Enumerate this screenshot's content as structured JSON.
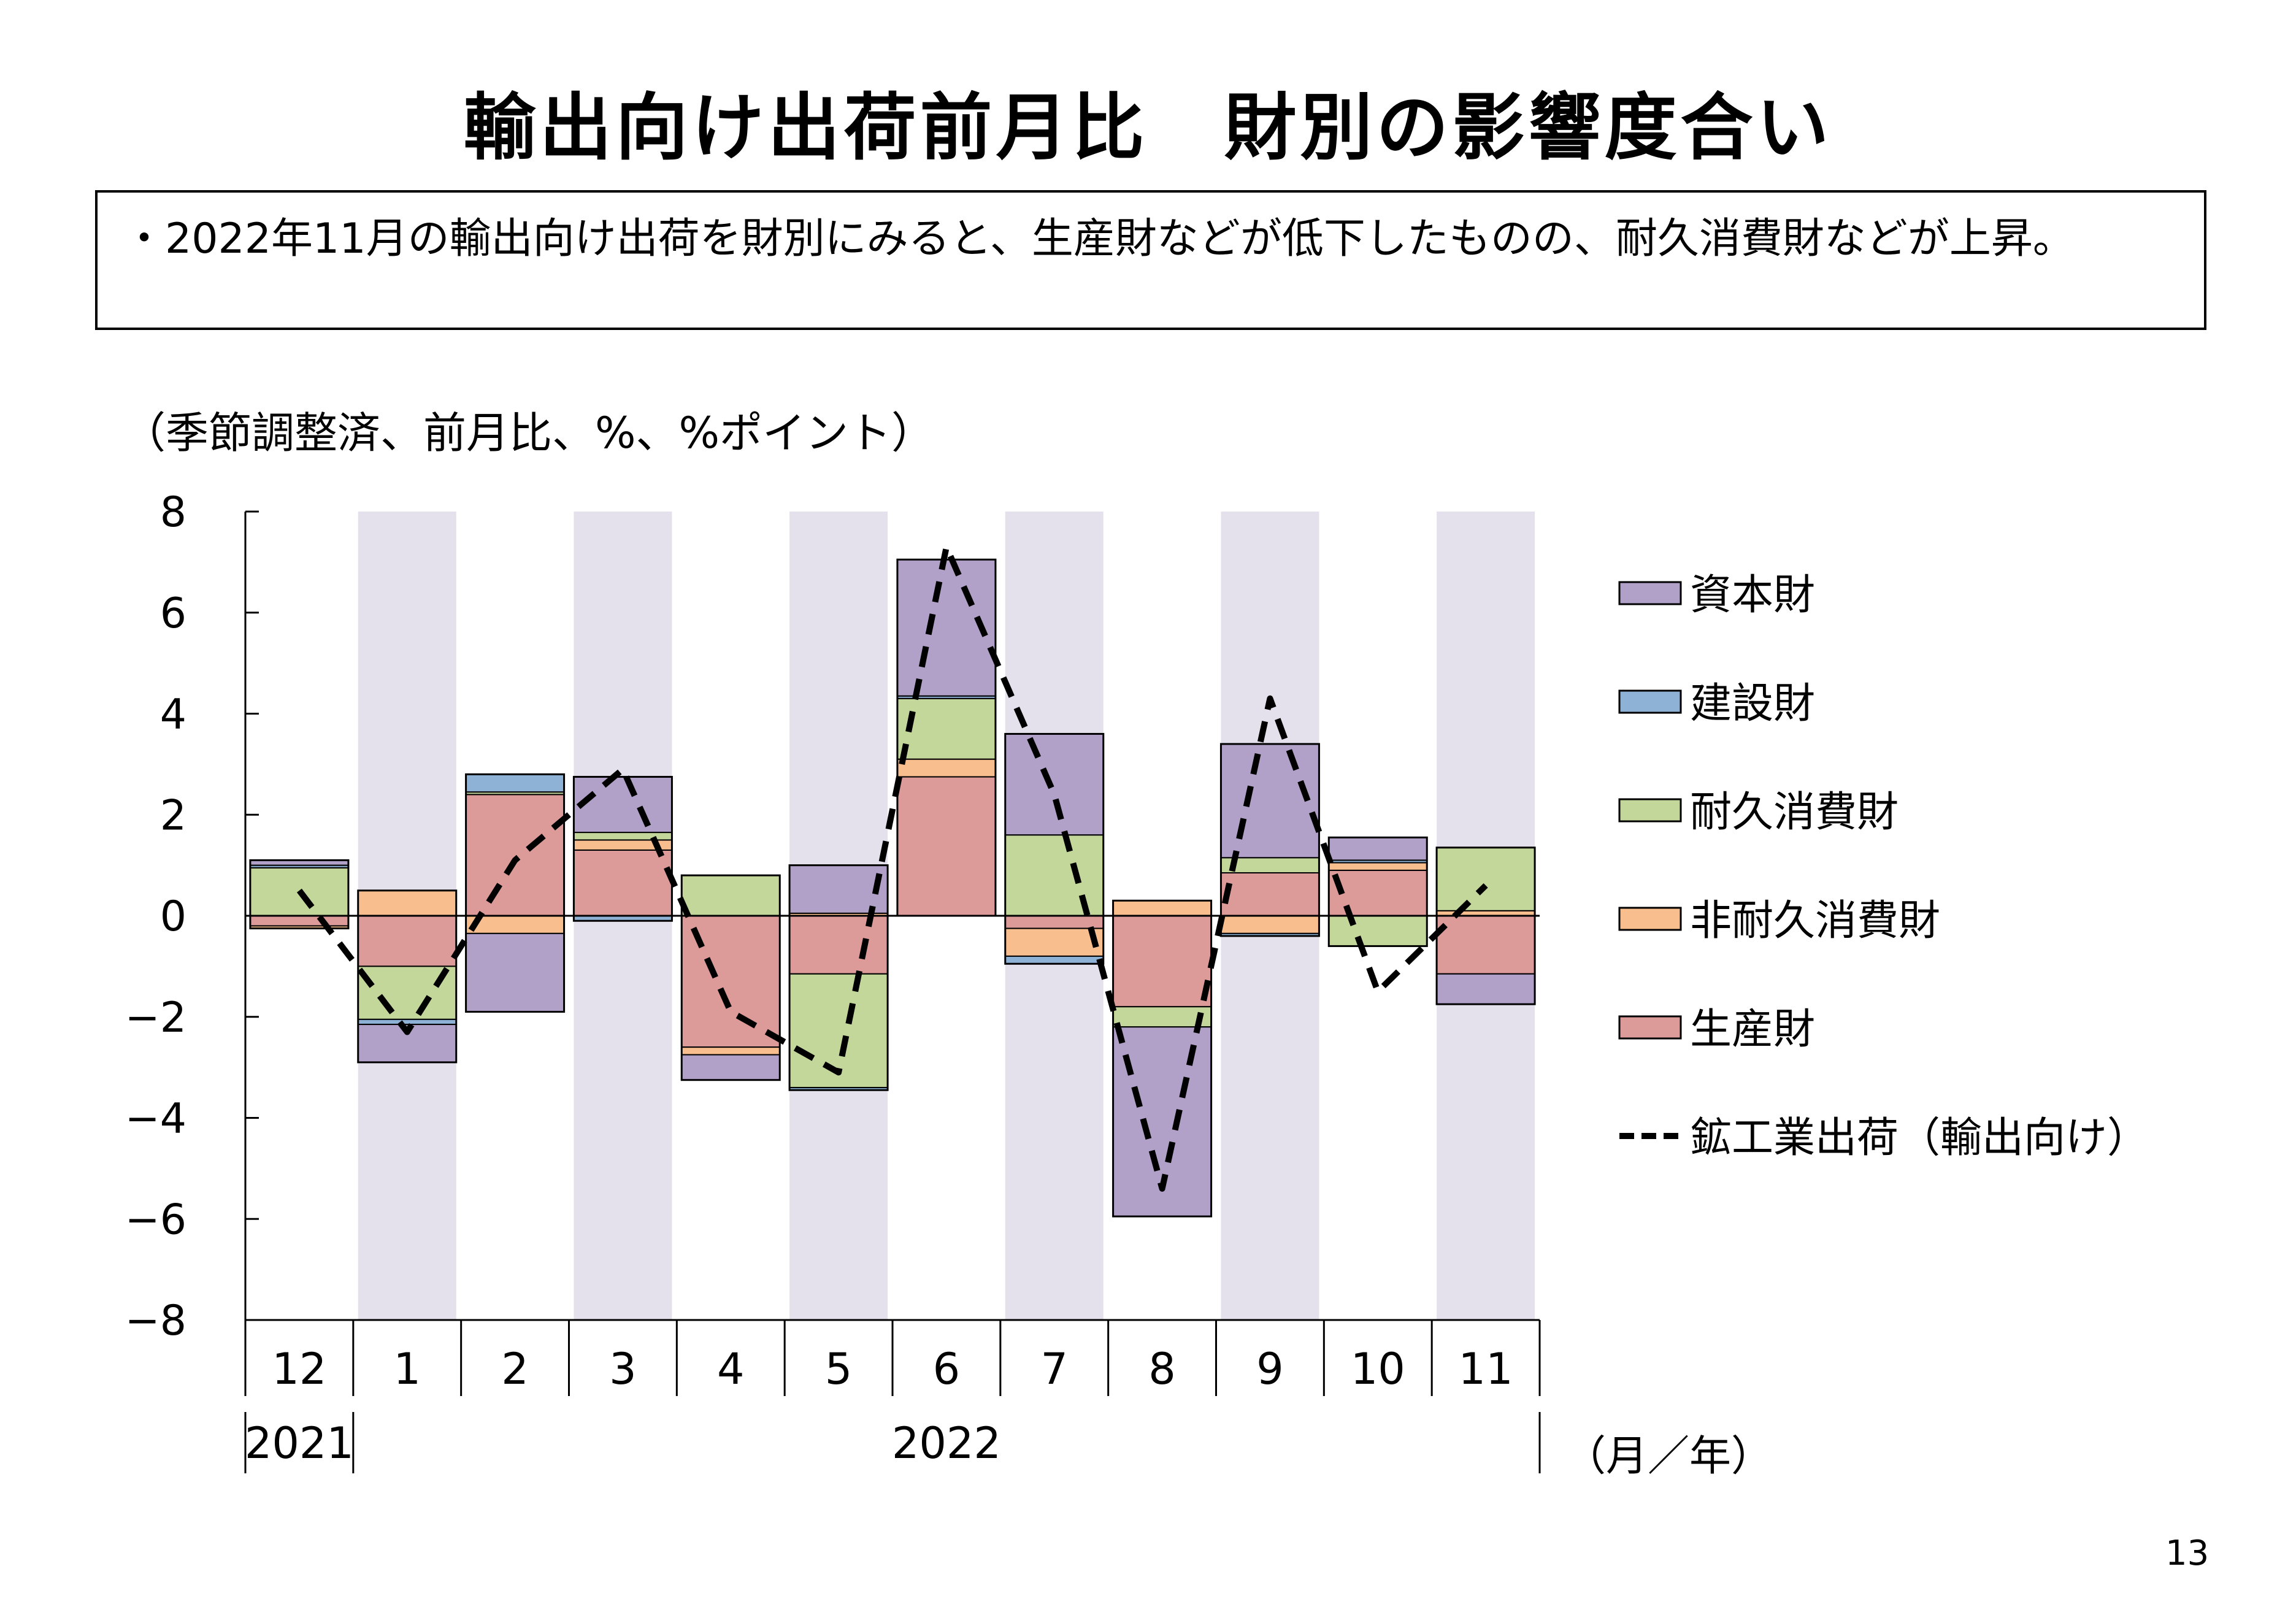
{
  "title": "輸出向け出荷前月比　財別の影響度合い",
  "summary": "・2022年11月の輸出向け出荷を財別にみると、生産財などが低下したものの、耐久消費財などが上昇。",
  "unit_note": "（季節調整済、前月比、%、%ポイント）",
  "page_number": "13",
  "chart_data": {
    "type": "bar",
    "stacked": true,
    "categories": [
      "12",
      "1",
      "2",
      "3",
      "4",
      "5",
      "6",
      "7",
      "8",
      "9",
      "10",
      "11"
    ],
    "year_labels": [
      {
        "label": "2021",
        "from": 0,
        "to": 0
      },
      {
        "label": "2022",
        "from": 1,
        "to": 11
      }
    ],
    "x_unit_label": "（月／年）",
    "ylim": [
      -8,
      8
    ],
    "yticks": [
      8,
      6,
      4,
      2,
      0,
      -2,
      -4,
      -6,
      -8
    ],
    "ytick_labels": [
      "8",
      "6",
      "4",
      "2",
      "0",
      "−2",
      "−4",
      "−6",
      "−8"
    ],
    "shaded_categories": [
      1,
      3,
      5,
      7,
      9,
      11
    ],
    "shade_color": "#e4e0ec",
    "series": [
      {
        "name": "生産財",
        "color": "#dc9a98",
        "values": [
          -0.2,
          -1.0,
          2.4,
          1.3,
          -2.6,
          -1.15,
          2.75,
          -0.25,
          -1.8,
          0.85,
          0.9,
          -1.15
        ]
      },
      {
        "name": "非耐久消費財",
        "color": "#f9be8e",
        "values": [
          -0.05,
          0.5,
          -0.35,
          0.2,
          -0.15,
          0.05,
          0.35,
          -0.55,
          0.3,
          -0.35,
          0.15,
          0.1
        ]
      },
      {
        "name": "耐久消費財",
        "color": "#c4d79b",
        "values": [
          0.95,
          -1.05,
          0.05,
          0.15,
          0.8,
          -2.25,
          1.2,
          1.6,
          -0.4,
          0.3,
          -0.6,
          1.25
        ]
      },
      {
        "name": "建設財",
        "color": "#8eb1d6",
        "values": [
          0.05,
          -0.1,
          0.35,
          -0.1,
          0.0,
          -0.05,
          0.05,
          -0.15,
          0.0,
          -0.05,
          0.05,
          0.0
        ]
      },
      {
        "name": "資本財",
        "color": "#b1a0c7",
        "values": [
          0.1,
          -0.75,
          -1.55,
          1.1,
          -0.5,
          0.95,
          2.7,
          2.0,
          -3.75,
          2.25,
          0.45,
          -0.6
        ]
      }
    ],
    "line_series": {
      "name": "鉱工業出荷（輸出向け）",
      "color": "#000000",
      "style": "dashed",
      "values": [
        0.5,
        -2.3,
        1.1,
        2.9,
        -1.9,
        -3.1,
        7.3,
        2.4,
        -5.4,
        4.3,
        -1.5,
        0.6
      ]
    },
    "legend": {
      "placement": "right",
      "entries": [
        "資本財",
        "建設財",
        "耐久消費財",
        "非耐久消費財",
        "生産財",
        "鉱工業出荷（輸出向け）"
      ]
    }
  }
}
